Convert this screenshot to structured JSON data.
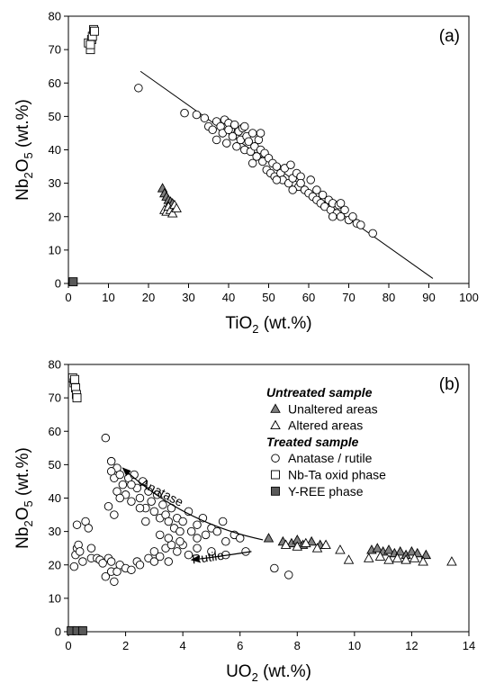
{
  "chart_data": [
    {
      "type": "scatter",
      "panel_label": "(a)",
      "xlabel": {
        "main": "TiO",
        "sub": "2",
        "rest": " (wt.%)"
      },
      "ylabel": {
        "main": "Nb",
        "sub1": "2",
        "mid": "O",
        "sub2": "5",
        "rest": " (wt.%)"
      },
      "xlim": [
        0,
        100
      ],
      "ylim": [
        0,
        80
      ],
      "xticks": [
        0,
        10,
        20,
        30,
        40,
        50,
        60,
        70,
        80,
        90,
        100
      ],
      "yticks": [
        0,
        10,
        20,
        30,
        40,
        50,
        60,
        70,
        80
      ],
      "grid": false,
      "trend_line": {
        "x": [
          18,
          91
        ],
        "y": [
          63.5,
          1.5
        ]
      },
      "series": [
        {
          "marker": "circle-open",
          "points": [
            [
              17.5,
              58.5
            ],
            [
              29,
              51
            ],
            [
              32,
              50.5
            ],
            [
              34,
              49.5
            ],
            [
              35,
              47
            ],
            [
              36,
              46
            ],
            [
              37,
              48.5
            ],
            [
              38,
              47
            ],
            [
              38.5,
              45
            ],
            [
              39,
              49
            ],
            [
              39.5,
              42
            ],
            [
              40,
              48
            ],
            [
              40.5,
              46
            ],
            [
              41,
              44
            ],
            [
              41.5,
              47.5
            ],
            [
              42,
              41
            ],
            [
              42.5,
              45.5
            ],
            [
              43,
              43
            ],
            [
              43.5,
              46.5
            ],
            [
              44,
              40
            ],
            [
              44.5,
              44
            ],
            [
              45,
              42.5
            ],
            [
              45.5,
              39.5
            ],
            [
              46,
              45
            ],
            [
              46.5,
              41
            ],
            [
              47,
              38
            ],
            [
              47.5,
              43
            ],
            [
              48,
              40
            ],
            [
              48.5,
              36.5
            ],
            [
              49,
              39
            ],
            [
              49.5,
              34
            ],
            [
              50,
              37.5
            ],
            [
              50.5,
              33
            ],
            [
              51,
              36
            ],
            [
              51.5,
              32
            ],
            [
              52,
              35
            ],
            [
              53,
              33
            ],
            [
              53.5,
              31
            ],
            [
              54,
              34.5
            ],
            [
              55,
              30
            ],
            [
              55.5,
              35.5
            ],
            [
              56,
              31.5
            ],
            [
              57,
              33
            ],
            [
              57.5,
              29
            ],
            [
              58,
              32
            ],
            [
              59,
              28
            ],
            [
              60,
              27
            ],
            [
              60.5,
              31
            ],
            [
              61,
              26
            ],
            [
              62,
              25
            ],
            [
              63,
              24
            ],
            [
              63.5,
              26.5
            ],
            [
              64,
              23
            ],
            [
              65,
              25
            ],
            [
              65.5,
              22
            ],
            [
              66,
              24
            ],
            [
              67,
              21
            ],
            [
              67.5,
              23.5
            ],
            [
              68,
              20
            ],
            [
              69,
              22
            ],
            [
              70,
              19
            ],
            [
              71,
              20
            ],
            [
              72,
              18
            ],
            [
              73,
              17.5
            ],
            [
              76,
              15
            ],
            [
              37,
              43
            ],
            [
              40,
              46
            ],
            [
              44,
              47
            ],
            [
              46,
              36
            ],
            [
              48,
              45
            ],
            [
              52,
              31
            ],
            [
              56,
              28
            ],
            [
              58,
              30
            ],
            [
              62,
              28
            ],
            [
              66,
              20
            ],
            [
              68,
              24
            ]
          ]
        },
        {
          "marker": "triangle-filled",
          "points": [
            [
              23.5,
              28.5
            ],
            [
              24,
              27
            ],
            [
              24.5,
              26
            ],
            [
              25,
              25
            ],
            [
              25.5,
              24.5
            ],
            [
              26,
              24
            ],
            [
              26.5,
              23
            ]
          ]
        },
        {
          "marker": "triangle-open",
          "points": [
            [
              24,
              22
            ],
            [
              24.5,
              21.5
            ],
            [
              25,
              23
            ],
            [
              25.5,
              22
            ],
            [
              26,
              21
            ],
            [
              26.5,
              23.5
            ],
            [
              27,
              22.5
            ]
          ]
        },
        {
          "marker": "square-open",
          "points": [
            [
              5,
              72
            ],
            [
              5.5,
              70
            ],
            [
              5.8,
              73
            ],
            [
              6,
              74
            ],
            [
              6.3,
              76
            ],
            [
              6.5,
              75.5
            ],
            [
              5.5,
              71.5
            ]
          ]
        },
        {
          "marker": "square-filled",
          "points": [
            [
              1.2,
              0.5
            ]
          ]
        }
      ]
    },
    {
      "type": "scatter",
      "panel_label": "(b)",
      "xlabel": {
        "main": "UO",
        "sub": "2",
        "rest": " (wt.%)"
      },
      "ylabel": {
        "main": "Nb",
        "sub1": "2",
        "mid": "O",
        "sub2": "5",
        "rest": " (wt.%)"
      },
      "xlim": [
        0,
        14
      ],
      "ylim": [
        0,
        80
      ],
      "xticks": [
        0,
        2,
        4,
        6,
        8,
        10,
        12,
        14
      ],
      "yticks": [
        0,
        10,
        20,
        30,
        40,
        50,
        60,
        70,
        80
      ],
      "grid": false,
      "legend": {
        "position": "top-right",
        "items": [
          {
            "kind": "title",
            "label": "Untreated sample"
          },
          {
            "kind": "triangle-filled",
            "label": "Unaltered areas"
          },
          {
            "kind": "triangle-open",
            "label": "Altered areas"
          },
          {
            "kind": "title",
            "label": "Treated sample"
          },
          {
            "kind": "circle-open",
            "label": "Anatase / rutile"
          },
          {
            "kind": "square-open",
            "label": "Nb-Ta oxid phase"
          },
          {
            "kind": "square-filled",
            "label": "Y-REE phase"
          }
        ]
      },
      "annotations": [
        {
          "label": "Anatase",
          "x": 3.2,
          "y": 40.5,
          "rotate": 27
        },
        {
          "label": "Rutile",
          "x": 4.9,
          "y": 21,
          "rotate": -8
        }
      ],
      "arrows": [
        {
          "from": [
            6.8,
            27.5
          ],
          "control": [
            4.0,
            32.5
          ],
          "to": [
            1.9,
            49
          ]
        },
        {
          "from": [
            6.4,
            24
          ],
          "control": [
            5.3,
            22.5
          ],
          "to": [
            4.3,
            21.5
          ]
        }
      ],
      "series": [
        {
          "marker": "circle-open",
          "points": [
            [
              0.2,
              19.5
            ],
            [
              0.25,
              23
            ],
            [
              0.3,
              25
            ],
            [
              0.35,
              26
            ],
            [
              0.4,
              24
            ],
            [
              0.3,
              32
            ],
            [
              0.5,
              21
            ],
            [
              0.6,
              33
            ],
            [
              0.7,
              31
            ],
            [
              0.8,
              25
            ],
            [
              0.8,
              22
            ],
            [
              1.0,
              22
            ],
            [
              1.1,
              21.5
            ],
            [
              1.2,
              20.5
            ],
            [
              1.3,
              16.5
            ],
            [
              1.4,
              22
            ],
            [
              1.5,
              18
            ],
            [
              1.5,
              21
            ],
            [
              1.6,
              15
            ],
            [
              1.7,
              18
            ],
            [
              1.8,
              20
            ],
            [
              2.0,
              19
            ],
            [
              2.2,
              18.5
            ],
            [
              2.4,
              21
            ],
            [
              2.5,
              20
            ],
            [
              2.8,
              22
            ],
            [
              3.0,
              24
            ],
            [
              3.0,
              21
            ],
            [
              3.2,
              22.5
            ],
            [
              3.4,
              25
            ],
            [
              3.5,
              21
            ],
            [
              3.6,
              26
            ],
            [
              3.8,
              24
            ],
            [
              4.0,
              26
            ],
            [
              4.2,
              23
            ],
            [
              4.5,
              25
            ],
            [
              5.0,
              24
            ],
            [
              5.5,
              23
            ],
            [
              6.2,
              24
            ],
            [
              7.2,
              19
            ],
            [
              7.7,
              17
            ],
            [
              1.3,
              58
            ],
            [
              1.4,
              37.5
            ],
            [
              1.5,
              51
            ],
            [
              1.6,
              46
            ],
            [
              1.7,
              49
            ],
            [
              1.7,
              42
            ],
            [
              1.8,
              47
            ],
            [
              1.9,
              44
            ],
            [
              2.0,
              41
            ],
            [
              2.1,
              46
            ],
            [
              2.2,
              39
            ],
            [
              2.3,
              47
            ],
            [
              2.4,
              43
            ],
            [
              2.5,
              40
            ],
            [
              2.6,
              45
            ],
            [
              2.7,
              37
            ],
            [
              2.8,
              42
            ],
            [
              2.9,
              39
            ],
            [
              3.0,
              36
            ],
            [
              3.1,
              41
            ],
            [
              3.2,
              34
            ],
            [
              3.3,
              38
            ],
            [
              3.4,
              35
            ],
            [
              3.5,
              33
            ],
            [
              3.6,
              37
            ],
            [
              3.7,
              31
            ],
            [
              3.8,
              34
            ],
            [
              3.9,
              30
            ],
            [
              4.0,
              33
            ],
            [
              4.2,
              36
            ],
            [
              4.3,
              30
            ],
            [
              4.5,
              32
            ],
            [
              4.7,
              34
            ],
            [
              4.8,
              29
            ],
            [
              5.0,
              31
            ],
            [
              5.2,
              30
            ],
            [
              5.4,
              33
            ],
            [
              5.8,
              29
            ],
            [
              6.0,
              28
            ],
            [
              1.5,
              48
            ],
            [
              1.6,
              35
            ],
            [
              1.8,
              40
            ],
            [
              2.2,
              44
            ],
            [
              2.5,
              37
            ],
            [
              2.7,
              33
            ],
            [
              3.2,
              29
            ],
            [
              3.5,
              28
            ],
            [
              3.9,
              27
            ],
            [
              4.5,
              28
            ],
            [
              5.5,
              27
            ]
          ]
        },
        {
          "marker": "triangle-filled",
          "points": [
            [
              7.0,
              28
            ],
            [
              7.5,
              27
            ],
            [
              7.8,
              26.5
            ],
            [
              8.0,
              27.5
            ],
            [
              8.2,
              26
            ],
            [
              8.5,
              27
            ],
            [
              8.8,
              26
            ],
            [
              10.6,
              24.5
            ],
            [
              10.8,
              25
            ],
            [
              11.0,
              24
            ],
            [
              11.2,
              24.5
            ],
            [
              11.4,
              23.5
            ],
            [
              11.6,
              24
            ],
            [
              11.8,
              23
            ],
            [
              12.0,
              24
            ],
            [
              12.2,
              23.5
            ],
            [
              12.5,
              23
            ]
          ]
        },
        {
          "marker": "triangle-open",
          "points": [
            [
              7.6,
              26
            ],
            [
              8.0,
              25.5
            ],
            [
              8.3,
              26.5
            ],
            [
              8.7,
              25
            ],
            [
              9.0,
              26
            ],
            [
              9.5,
              24.5
            ],
            [
              9.8,
              21.5
            ],
            [
              10.5,
              22
            ],
            [
              10.9,
              22.5
            ],
            [
              11.2,
              21.5
            ],
            [
              11.5,
              22
            ],
            [
              11.8,
              21.5
            ],
            [
              12.1,
              22
            ],
            [
              12.4,
              21
            ],
            [
              13.4,
              21
            ]
          ]
        },
        {
          "marker": "square-open",
          "points": [
            [
              0.15,
              76
            ],
            [
              0.2,
              74.5
            ],
            [
              0.25,
              73
            ],
            [
              0.28,
              71
            ],
            [
              0.3,
              70
            ],
            [
              0.22,
              75.5
            ]
          ]
        },
        {
          "marker": "square-filled",
          "points": [
            [
              0.1,
              0.3
            ],
            [
              0.3,
              0.3
            ],
            [
              0.5,
              0.3
            ]
          ]
        }
      ]
    }
  ]
}
